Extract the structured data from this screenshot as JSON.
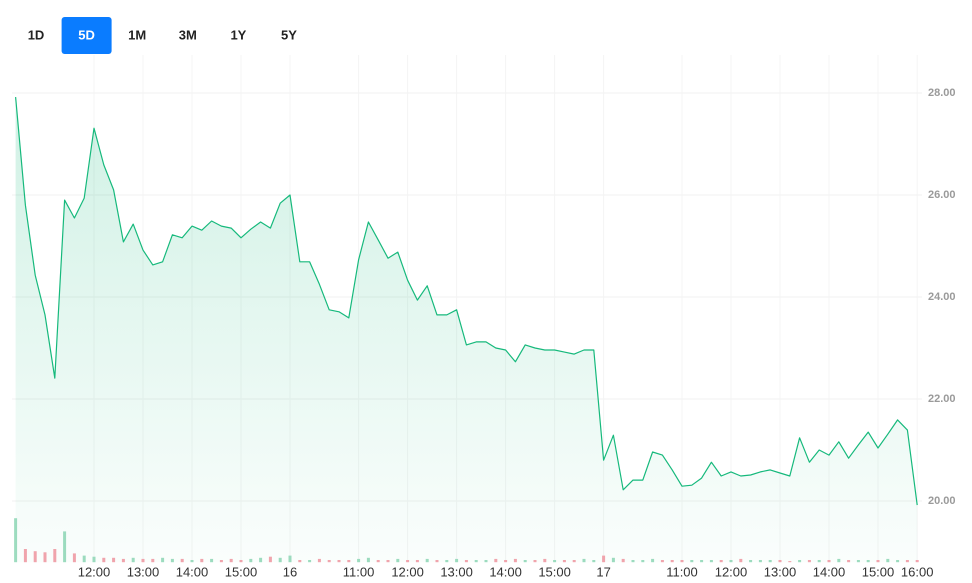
{
  "range_buttons": [
    "1D",
    "5D",
    "1M",
    "3M",
    "1Y",
    "5Y"
  ],
  "selected_range": "5D",
  "chart_data": {
    "type": "area",
    "color": "#16b97c",
    "categories": [
      null,
      null,
      null,
      null,
      null,
      null,
      null,
      null,
      "12:00",
      null,
      null,
      null,
      null,
      "13:00",
      null,
      null,
      null,
      null,
      "14:00",
      null,
      null,
      null,
      null,
      "15:00",
      null,
      null,
      null,
      null,
      "16",
      null,
      null,
      null,
      null,
      null,
      null,
      "11:00",
      null,
      null,
      null,
      null,
      "12:00",
      null,
      null,
      null,
      null,
      "13:00",
      null,
      null,
      null,
      null,
      "14:00",
      null,
      null,
      null,
      null,
      "15:00",
      null,
      null,
      null,
      null,
      "17",
      null,
      null,
      null,
      null,
      null,
      null,
      null,
      "11:00",
      null,
      null,
      null,
      null,
      "12:00",
      null,
      null,
      null,
      null,
      "13:00",
      null,
      null,
      null,
      null,
      "14:00",
      null,
      null,
      null,
      null,
      "15:00",
      null,
      null,
      null,
      "16:00"
    ],
    "values": [
      27.92,
      25.8,
      24.43,
      23.65,
      22.41,
      25.9,
      25.55,
      25.94,
      27.31,
      26.59,
      26.1,
      25.08,
      25.43,
      24.92,
      24.63,
      24.69,
      25.22,
      25.16,
      25.39,
      25.31,
      25.49,
      25.39,
      25.35,
      25.16,
      25.33,
      25.47,
      25.35,
      25.84,
      26.0,
      24.69,
      24.69,
      24.25,
      23.75,
      23.71,
      23.59,
      24.73,
      25.47,
      25.12,
      24.76,
      24.88,
      24.33,
      23.94,
      24.22,
      23.65,
      23.65,
      23.75,
      23.06,
      23.12,
      23.12,
      23.0,
      22.96,
      22.73,
      23.06,
      23.0,
      22.96,
      22.96,
      22.92,
      22.88,
      22.96,
      22.96,
      20.8,
      21.29,
      20.22,
      20.41,
      20.41,
      20.96,
      20.9,
      20.61,
      20.29,
      20.31,
      20.45,
      20.76,
      20.49,
      20.57,
      20.49,
      20.51,
      20.57,
      20.61,
      20.55,
      20.49,
      21.24,
      20.76,
      21.0,
      20.9,
      21.16,
      20.84,
      21.1,
      21.35,
      21.04,
      21.31,
      21.59,
      21.39,
      19.92
    ],
    "ylim": [
      18.8,
      28.6
    ],
    "yticks": [
      {
        "value": 20,
        "label": "20.00"
      },
      {
        "value": 22,
        "label": "22.00"
      },
      {
        "value": 24,
        "label": "24.00"
      },
      {
        "value": 26,
        "label": "26.00"
      },
      {
        "value": 28,
        "label": "28.00"
      }
    ],
    "grid": true,
    "volume": [
      40,
      12,
      10,
      9,
      12,
      28,
      8,
      6,
      5,
      4,
      4,
      3,
      4,
      3,
      3,
      4,
      3,
      3,
      2,
      3,
      3,
      2,
      3,
      2,
      3,
      4,
      5,
      4,
      6,
      2,
      2,
      3,
      2,
      2,
      2,
      3,
      4,
      2,
      2,
      3,
      2,
      2,
      3,
      2,
      2,
      3,
      2,
      2,
      2,
      3,
      2,
      3,
      2,
      2,
      3,
      2,
      2,
      2,
      3,
      2,
      6,
      4,
      3,
      2,
      2,
      3,
      2,
      2,
      2,
      2,
      2,
      2,
      2,
      2,
      3,
      2,
      2,
      2,
      2,
      1,
      2,
      2,
      2,
      2,
      3,
      2,
      2,
      2,
      2,
      3,
      2,
      2,
      2
    ],
    "volume_lim": [
      0,
      100
    ],
    "volume_up_color": "#9fdcc0",
    "volume_down_color": "#f5a3ad"
  }
}
